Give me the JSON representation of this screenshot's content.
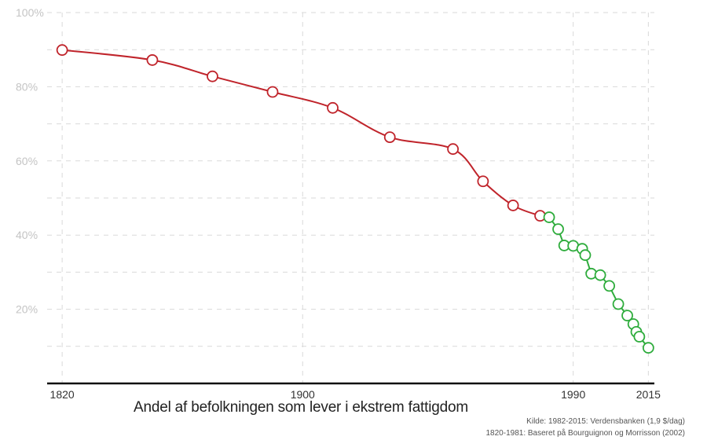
{
  "chart_data": {
    "type": "line",
    "title": "Andel af befolkningen som lever i ekstrem fattigdom",
    "xlabel": "",
    "ylabel": "",
    "xlim": [
      1815,
      2017
    ],
    "ylim": [
      0,
      100
    ],
    "x_ticks": [
      {
        "value": 1820,
        "label": "1820"
      },
      {
        "value": 1900,
        "label": "1900"
      },
      {
        "value": 1990,
        "label": "1990"
      },
      {
        "value": 2015,
        "label": "2015"
      }
    ],
    "y_ticks": [
      {
        "value": 20,
        "label": "20%"
      },
      {
        "value": 40,
        "label": "40%"
      },
      {
        "value": 60,
        "label": "60%"
      },
      {
        "value": 80,
        "label": "80%"
      },
      {
        "value": 100,
        "label": "100%"
      }
    ],
    "grid": true,
    "series": [
      {
        "color": "#c0242b",
        "points": [
          {
            "x": 1820,
            "y": 89.9
          },
          {
            "x": 1850,
            "y": 87.2
          },
          {
            "x": 1870,
            "y": 82.8
          },
          {
            "x": 1890,
            "y": 78.6
          },
          {
            "x": 1910,
            "y": 74.3
          },
          {
            "x": 1929,
            "y": 66.4
          },
          {
            "x": 1950,
            "y": 63.2
          },
          {
            "x": 1960,
            "y": 54.5
          },
          {
            "x": 1970,
            "y": 48.0
          },
          {
            "x": 1979,
            "y": 45.2
          }
        ]
      },
      {
        "color": "#2eac3c",
        "points": [
          {
            "x": 1982,
            "y": 44.8
          },
          {
            "x": 1985,
            "y": 41.6
          },
          {
            "x": 1987,
            "y": 37.2
          },
          {
            "x": 1990,
            "y": 37.1
          },
          {
            "x": 1993,
            "y": 36.3
          },
          {
            "x": 1994,
            "y": 34.6
          },
          {
            "x": 1996,
            "y": 29.6
          },
          {
            "x": 1999,
            "y": 29.2
          },
          {
            "x": 2002,
            "y": 26.3
          },
          {
            "x": 2005,
            "y": 21.4
          },
          {
            "x": 2008,
            "y": 18.3
          },
          {
            "x": 2010,
            "y": 16.0
          },
          {
            "x": 2011,
            "y": 13.9
          },
          {
            "x": 2012,
            "y": 12.6
          },
          {
            "x": 2015,
            "y": 9.6
          }
        ]
      }
    ],
    "sources": [
      "Kilde: 1982-2015: Verdensbanken (1,9 $/dag)",
      "1820-1981: Baseret på Bourguignon og Morrisson (2002)"
    ]
  }
}
